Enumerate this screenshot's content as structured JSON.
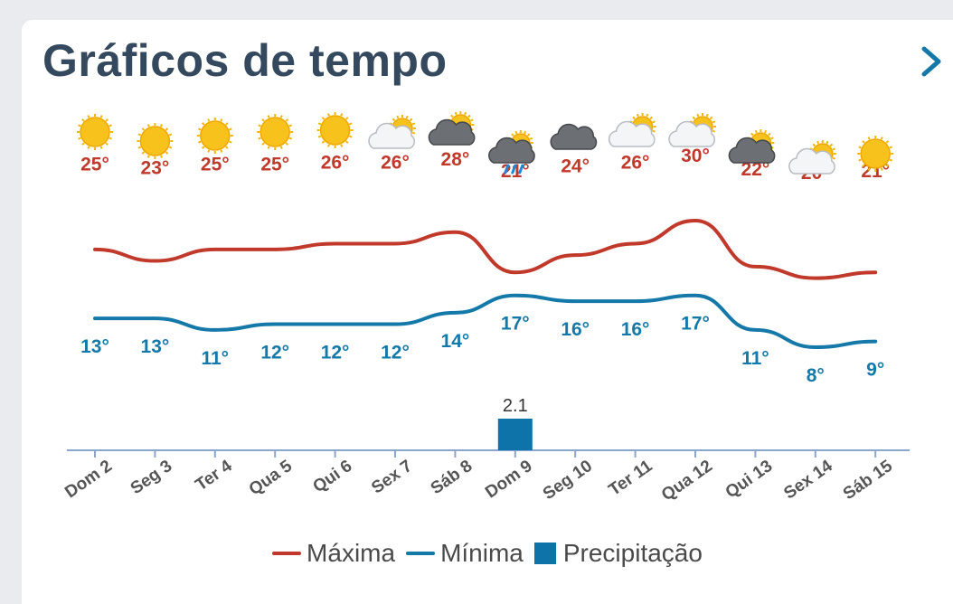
{
  "header": {
    "title": "Gráficos de tempo"
  },
  "colors": {
    "max": "#c0392b",
    "min": "#1478a8",
    "precip": "#0e73a8",
    "axis": "#8aa6cf",
    "tick_label": "#555555"
  },
  "legend": {
    "max_label": "Máxima",
    "min_label": "Mínima",
    "precip_label": "Precipitação"
  },
  "chart_data": {
    "type": "line",
    "categories": [
      "Dom 2",
      "Seg 3",
      "Ter 4",
      "Qua 5",
      "Qui 6",
      "Sex 7",
      "Sáb 8",
      "Dom 9",
      "Seg 10",
      "Ter 11",
      "Qua 12",
      "Qui 13",
      "Sex 14",
      "Sáb 15"
    ],
    "icons": [
      "sun",
      "sun",
      "sun",
      "sun",
      "sun",
      "sun-cloud",
      "sun-cloud-dark",
      "sun-cloud-rain",
      "cloud-dark",
      "sun-cloud",
      "sun-cloud",
      "sun-cloud-dark",
      "sun-cloud",
      "sun"
    ],
    "series": [
      {
        "name": "Máxima",
        "values": [
          25,
          23,
          25,
          25,
          26,
          26,
          28,
          21,
          24,
          26,
          30,
          22,
          20,
          21
        ],
        "labels": [
          "25°",
          "23°",
          "25°",
          "25°",
          "26°",
          "26°",
          "28°",
          "21°",
          "24°",
          "26°",
          "30°",
          "22°",
          "20°",
          "21°"
        ]
      },
      {
        "name": "Mínima",
        "values": [
          13,
          13,
          11,
          12,
          12,
          12,
          14,
          17,
          16,
          16,
          17,
          11,
          8,
          9
        ],
        "labels": [
          "13°",
          "13°",
          "11°",
          "12°",
          "12°",
          "12°",
          "14°",
          "17°",
          "16°",
          "16°",
          "17°",
          "11°",
          "8°",
          "9°"
        ]
      },
      {
        "name": "Precipitação",
        "type": "bar",
        "values": [
          0,
          0,
          0,
          0,
          0,
          0,
          0,
          2.1,
          0,
          0,
          0,
          0,
          0,
          0
        ],
        "labels": [
          "",
          "",
          "",
          "",
          "",
          "",
          "",
          "2.1",
          "",
          "",
          "",
          "",
          "",
          ""
        ]
      }
    ]
  }
}
